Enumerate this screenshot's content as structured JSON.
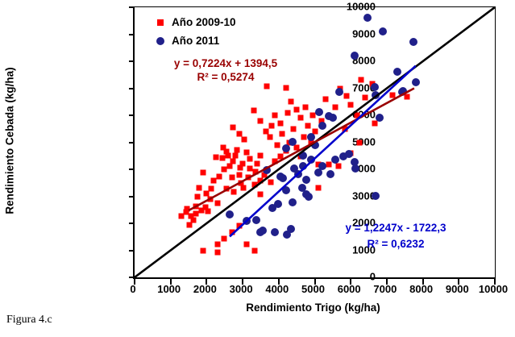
{
  "figure": {
    "caption": "Figura 4.c"
  },
  "chart_data": {
    "type": "scatter",
    "title": "",
    "xlabel": "Rendimiento Trigo (kg/ha)",
    "ylabel": "Rendimiento Cebada (kg/ha)",
    "xlim": [
      0,
      10000
    ],
    "ylim": [
      0,
      10000
    ],
    "xticks": [
      0,
      1000,
      2000,
      3000,
      4000,
      5000,
      6000,
      7000,
      8000,
      9000,
      10000
    ],
    "yticks": [
      0,
      1000,
      2000,
      3000,
      4000,
      5000,
      6000,
      7000,
      8000,
      9000,
      10000
    ],
    "grid": false,
    "legend": {
      "position": "top-left-inside",
      "items": [
        {
          "label": "Año 2009-10",
          "marker": "square",
          "color": "#ff0000"
        },
        {
          "label": "Año 2011",
          "marker": "circle",
          "color": "#20208a"
        }
      ]
    },
    "series": [
      {
        "name": "Año 2009-10",
        "marker": "square",
        "color": "#ff0000",
        "points": [
          [
            1300,
            2270
          ],
          [
            1440,
            2430
          ],
          [
            1460,
            2550
          ],
          [
            1530,
            1940
          ],
          [
            1560,
            2280
          ],
          [
            1640,
            2120
          ],
          [
            1690,
            2620
          ],
          [
            1700,
            2350
          ],
          [
            1750,
            3000
          ],
          [
            1800,
            3310
          ],
          [
            1850,
            2480
          ],
          [
            1910,
            3880
          ],
          [
            1960,
            2600
          ],
          [
            2000,
            3100
          ],
          [
            2040,
            2450
          ],
          [
            2100,
            2900
          ],
          [
            2135,
            3280
          ],
          [
            2200,
            3580
          ],
          [
            2250,
            4450
          ],
          [
            2310,
            2740
          ],
          [
            2360,
            3730
          ],
          [
            2430,
            4420
          ],
          [
            2450,
            4800
          ],
          [
            2480,
            4000
          ],
          [
            2540,
            3280
          ],
          [
            2550,
            4650
          ],
          [
            2600,
            4500
          ],
          [
            2630,
            4120
          ],
          [
            2700,
            3700
          ],
          [
            2740,
            4300
          ],
          [
            2760,
            3160
          ],
          [
            2800,
            4500
          ],
          [
            2850,
            4720
          ],
          [
            2900,
            3800
          ],
          [
            2920,
            4060
          ],
          [
            2950,
            3500
          ],
          [
            3000,
            4200
          ],
          [
            3030,
            3310
          ],
          [
            3100,
            4630
          ],
          [
            3150,
            3700
          ],
          [
            3190,
            4030
          ],
          [
            3200,
            4400
          ],
          [
            3330,
            3430
          ],
          [
            3350,
            3900
          ],
          [
            3400,
            4200
          ],
          [
            3480,
            3070
          ],
          [
            3480,
            3580
          ],
          [
            3500,
            4500
          ],
          [
            3600,
            3800
          ],
          [
            3780,
            3520
          ],
          [
            1910,
            990
          ],
          [
            2310,
            930
          ],
          [
            2310,
            1220
          ],
          [
            2480,
            1440
          ],
          [
            2700,
            1670
          ],
          [
            2900,
            1900
          ],
          [
            3100,
            1210
          ],
          [
            3330,
            1000
          ],
          [
            2740,
            5550
          ],
          [
            2900,
            5300
          ],
          [
            3050,
            5100
          ],
          [
            3300,
            6180
          ],
          [
            3500,
            5800
          ],
          [
            3640,
            5400
          ],
          [
            3660,
            7070
          ],
          [
            3750,
            5200
          ],
          [
            3800,
            5600
          ],
          [
            3900,
            6000
          ],
          [
            3900,
            4300
          ],
          [
            3950,
            4900
          ],
          [
            4040,
            4480
          ],
          [
            4050,
            5700
          ],
          [
            4100,
            5300
          ],
          [
            4200,
            4700
          ],
          [
            4200,
            7010
          ],
          [
            4250,
            6100
          ],
          [
            4300,
            5000
          ],
          [
            4350,
            6500
          ],
          [
            4400,
            5500
          ],
          [
            4500,
            4800
          ],
          [
            4500,
            6200
          ],
          [
            4600,
            5900
          ],
          [
            4610,
            4480
          ],
          [
            4700,
            5200
          ],
          [
            4750,
            6300
          ],
          [
            4800,
            5600
          ],
          [
            4900,
            5000
          ],
          [
            4950,
            6000
          ],
          [
            5000,
            5400
          ],
          [
            5100,
            3310
          ],
          [
            5100,
            4180
          ],
          [
            5200,
            5800
          ],
          [
            5390,
            4180
          ],
          [
            5660,
            4120
          ],
          [
            5300,
            6600
          ],
          [
            5570,
            6300
          ],
          [
            5700,
            7000
          ],
          [
            5850,
            5500
          ],
          [
            5890,
            6710
          ],
          [
            6000,
            4600
          ],
          [
            6000,
            6400
          ],
          [
            6180,
            6000
          ],
          [
            6250,
            5000
          ],
          [
            6290,
            7310
          ],
          [
            6400,
            6650
          ],
          [
            6600,
            7150
          ],
          [
            6670,
            5700
          ],
          [
            7150,
            6740
          ],
          [
            7560,
            6690
          ]
        ]
      },
      {
        "name": "Año 2011",
        "marker": "circle",
        "color": "#20208a",
        "points": [
          [
            6470,
            9600
          ],
          [
            6900,
            9100
          ],
          [
            7730,
            8720
          ],
          [
            6110,
            8210
          ],
          [
            7300,
            7610
          ],
          [
            7800,
            7220
          ],
          [
            6670,
            7040
          ],
          [
            7460,
            6900
          ],
          [
            7420,
            6870
          ],
          [
            5690,
            6870
          ],
          [
            6700,
            6740
          ],
          [
            5120,
            6120
          ],
          [
            5390,
            5970
          ],
          [
            5510,
            5910
          ],
          [
            6790,
            5910
          ],
          [
            5210,
            5610
          ],
          [
            4380,
            5010
          ],
          [
            4900,
            5200
          ],
          [
            4200,
            4780
          ],
          [
            4670,
            4510
          ],
          [
            5000,
            4900
          ],
          [
            4430,
            4030
          ],
          [
            4540,
            3820
          ],
          [
            4670,
            4120
          ],
          [
            4760,
            3610
          ],
          [
            4900,
            4360
          ],
          [
            5100,
            3880
          ],
          [
            5210,
            4120
          ],
          [
            5440,
            3820
          ],
          [
            5570,
            4360
          ],
          [
            5800,
            4480
          ],
          [
            5960,
            4570
          ],
          [
            6110,
            4270
          ],
          [
            6130,
            4030
          ],
          [
            4110,
            3670
          ],
          [
            4200,
            3220
          ],
          [
            4650,
            3310
          ],
          [
            4760,
            3070
          ],
          [
            4830,
            2990
          ],
          [
            4380,
            2780
          ],
          [
            3980,
            2720
          ],
          [
            3820,
            2570
          ],
          [
            3660,
            3970
          ],
          [
            4040,
            3730
          ],
          [
            6700,
            3020
          ],
          [
            2650,
            2330
          ],
          [
            3100,
            2090
          ],
          [
            3370,
            2120
          ],
          [
            3480,
            1670
          ],
          [
            3550,
            1730
          ],
          [
            4220,
            1580
          ],
          [
            4340,
            1790
          ],
          [
            3890,
            1670
          ]
        ]
      }
    ],
    "trendlines": [
      {
        "name": "identity-line",
        "color": "#000000",
        "width": 2.6,
        "x1": 0,
        "y1": 0,
        "x2": 10000,
        "y2": 10000
      },
      {
        "name": "trend-2009-10",
        "color": "#990000",
        "width": 2.6,
        "x1": 1500,
        "y1": 2478,
        "x2": 7760,
        "y2": 7000
      },
      {
        "name": "trend-2011",
        "color": "#0000cc",
        "width": 2.6,
        "x1": 2640,
        "y1": 1511,
        "x2": 7800,
        "y2": 7830
      }
    ],
    "annotations": [
      {
        "name": "equation-2009-10",
        "color": "#990000",
        "lines": [
          "y = 0,7224x + 1394,5",
          "R² = 0,5274"
        ]
      },
      {
        "name": "equation-2011",
        "color": "#0000cc",
        "lines": [
          "y = 1,2247x - 1722,3",
          "R² = 0,6232"
        ]
      }
    ]
  }
}
